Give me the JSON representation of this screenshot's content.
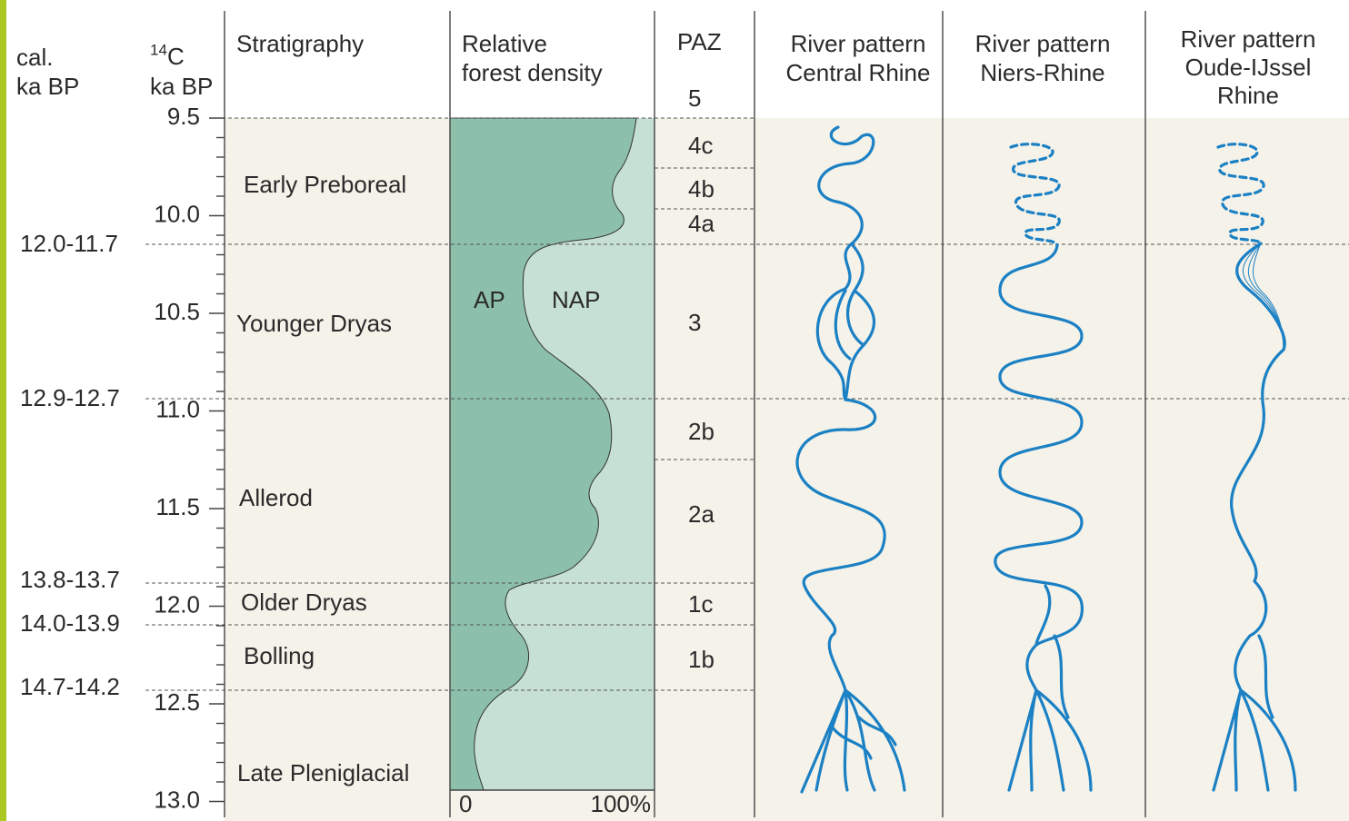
{
  "headers": {
    "cal": [
      "cal.",
      "ka BP"
    ],
    "c14": {
      "sup": "14",
      "main": "C",
      "unit": "ka BP"
    },
    "stratigraphy": "Stratigraphy",
    "forest": [
      "Relative",
      "forest density"
    ],
    "paz": "PAZ",
    "rivers": [
      [
        "River pattern",
        "Central Rhine"
      ],
      [
        "River pattern",
        "Niers-Rhine"
      ],
      [
        "River pattern",
        "Oude-IJssel",
        "Rhine"
      ]
    ]
  },
  "c14_ticks": [
    "9.5",
    "10.0",
    "10.5",
    "11.0",
    "11.5",
    "12.0",
    "12.5",
    "13.0"
  ],
  "cal_labels": [
    "12.0-11.7",
    "12.9-12.7",
    "13.8-13.7",
    "14.0-13.9",
    "14.7-14.2"
  ],
  "stratigraphy": [
    "Early Preboreal",
    "Younger Dryas",
    "Allerod",
    "Older Dryas",
    "Bolling",
    "Late Pleniglacial"
  ],
  "forest": {
    "labels": [
      "AP",
      "NAP"
    ],
    "axis": [
      "0",
      "100%"
    ]
  },
  "paz": [
    "5",
    "4c",
    "4b",
    "4a",
    "3",
    "2b",
    "2a",
    "1c",
    "1b"
  ]
}
